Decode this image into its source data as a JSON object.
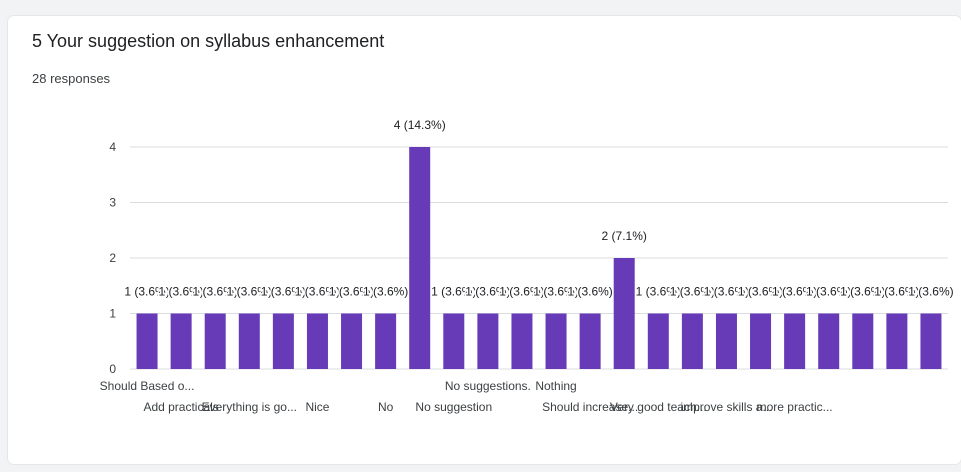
{
  "question": {
    "title": "5 Your suggestion on syllabus enhancement",
    "responses": "28 responses"
  },
  "colors": {
    "bar": "#673ab7",
    "grid": "#dadce0",
    "text": "#3c4043",
    "background": "#ffffff"
  },
  "chart_data": {
    "type": "bar",
    "title": "5 Your suggestion on syllabus enhancement",
    "subtitle": "28 responses",
    "xlabel": "",
    "ylabel": "",
    "ylim": [
      0,
      4
    ],
    "yticks": [
      "0",
      "1",
      "2",
      "3",
      "4"
    ],
    "grid": true,
    "categories": [
      "Should Based o...",
      "Add practicals",
      "",
      "Everything is go...",
      "",
      "Nice",
      "",
      "No",
      "",
      "No suggestion",
      "No suggestions.",
      "",
      "Nothing",
      "Should increase...",
      "",
      "Very good teach...",
      "",
      "improve skills a...",
      "",
      "more practic...",
      "",
      "",
      "",
      ""
    ],
    "values": [
      1,
      1,
      1,
      1,
      1,
      1,
      1,
      1,
      4,
      1,
      1,
      1,
      1,
      1,
      2,
      1,
      1,
      1,
      1,
      1,
      1,
      1,
      1,
      1
    ],
    "data_labels": [
      "1 (3.6%)",
      "1 (3.6%)",
      "1 (3.6%)",
      "1 (3.6%)",
      "1 (3.6%)",
      "1 (3.6%)",
      "1 (3.6%)",
      "1 (3.6%)",
      "4 (14.3%)",
      "1 (3.6%)",
      "1 (3.6%)",
      "1 (3.6%)",
      "1 (3.6%)",
      "1 (3.6%)",
      "2 (7.1%)",
      "1 (3.6%)",
      "1 (3.6%)",
      "1 (3.6%)",
      "1 (3.6%)",
      "1 (3.6%)",
      "1 (3.6%)",
      "1 (3.6%)",
      "1 (3.6%)",
      "1 (3.6%)"
    ]
  }
}
